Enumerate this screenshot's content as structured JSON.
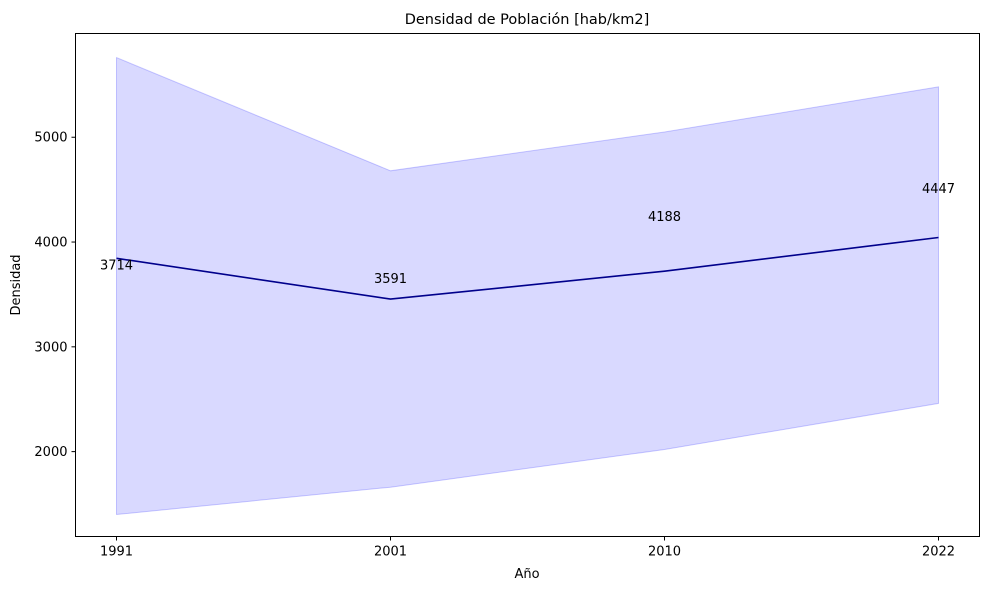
{
  "chart_data": {
    "type": "line",
    "title": "Densidad de Población [hab/km2]",
    "xlabel": "Año",
    "ylabel": "Densidad",
    "categories": [
      "1991",
      "2001",
      "2010",
      "2022"
    ],
    "series": [
      {
        "line_values": [
          3845,
          3455,
          3722,
          4043
        ],
        "band_upper": [
          5760,
          4680,
          5050,
          5480
        ],
        "band_lower": [
          1400,
          1660,
          2020,
          2460
        ],
        "data_labels": [
          "3714",
          "3591",
          "4188",
          "4447"
        ],
        "data_label_values": [
          3740,
          3610,
          4200,
          4470
        ],
        "line_color": "#00008b",
        "band_color": "#0000ff",
        "band_opacity": 0.15
      }
    ],
    "ylim": [
      1190,
      5990
    ],
    "yticks": [
      2000,
      3000,
      4000,
      5000
    ],
    "grid": false,
    "legend": "none"
  }
}
